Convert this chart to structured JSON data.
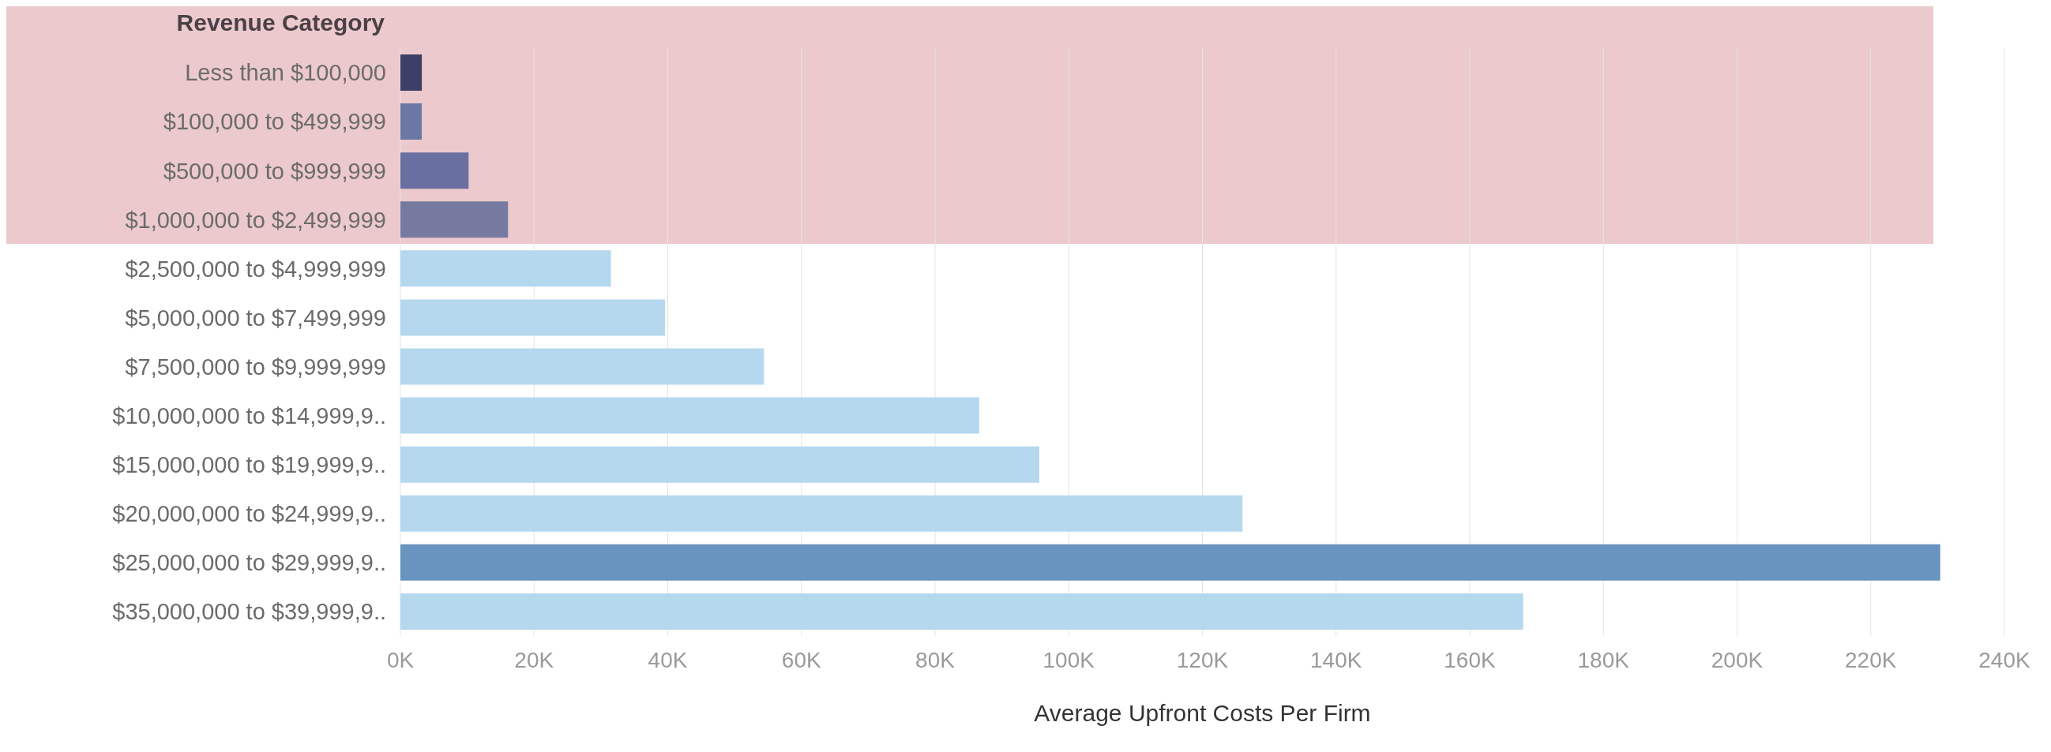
{
  "chart_data": {
    "type": "bar",
    "orientation": "horizontal",
    "ylabel": "Revenue Category",
    "xlabel": "Average Upfront Costs Per Firm",
    "categories": [
      "Less than $100,000",
      "$100,000 to $499,999",
      "$500,000 to $999,999",
      "$1,000,000 to $2,499,999",
      "$2,500,000 to $4,999,999",
      "$5,000,000 to $7,499,999",
      "$7,500,000 to $9,999,999",
      "$10,000,000 to $14,999,9..",
      "$15,000,000 to $19,999,9..",
      "$20,000,000 to $24,999,9..",
      "$25,000,000 to $29,999,9..",
      "$35,000,000 to $39,999,9.."
    ],
    "values": [
      3.2,
      3.2,
      10.2,
      16.1,
      31.5,
      39.6,
      54.4,
      86.6,
      95.6,
      126,
      230.4,
      168
    ],
    "colors": [
      "#3d3f68",
      "#6d77a3",
      "#6a6fa1",
      "#767aa0",
      "#b5d8ee",
      "#b5d8ee",
      "#b5d8ee",
      "#b5d8ee",
      "#b5d8ee",
      "#b5d8ee",
      "#6894bf",
      "#b5d8ee"
    ],
    "xlim": [
      0,
      240
    ],
    "xticks": [
      {
        "value": 0,
        "label": "0K"
      },
      {
        "value": 20,
        "label": "20K"
      },
      {
        "value": 40,
        "label": "40K"
      },
      {
        "value": 60,
        "label": "60K"
      },
      {
        "value": 80,
        "label": "80K"
      },
      {
        "value": 100,
        "label": "100K"
      },
      {
        "value": 120,
        "label": "120K"
      },
      {
        "value": 140,
        "label": "140K"
      },
      {
        "value": 160,
        "label": "160K"
      },
      {
        "value": 180,
        "label": "180K"
      },
      {
        "value": 200,
        "label": "200K"
      },
      {
        "value": 220,
        "label": "220K"
      },
      {
        "value": 240,
        "label": "240K"
      }
    ],
    "grid": "x",
    "bands": [
      {
        "axis": "y",
        "from": "Less than $100,000",
        "to": "$1,000,000 to $2,499,999",
        "color": "#ecc9cc"
      }
    ]
  }
}
